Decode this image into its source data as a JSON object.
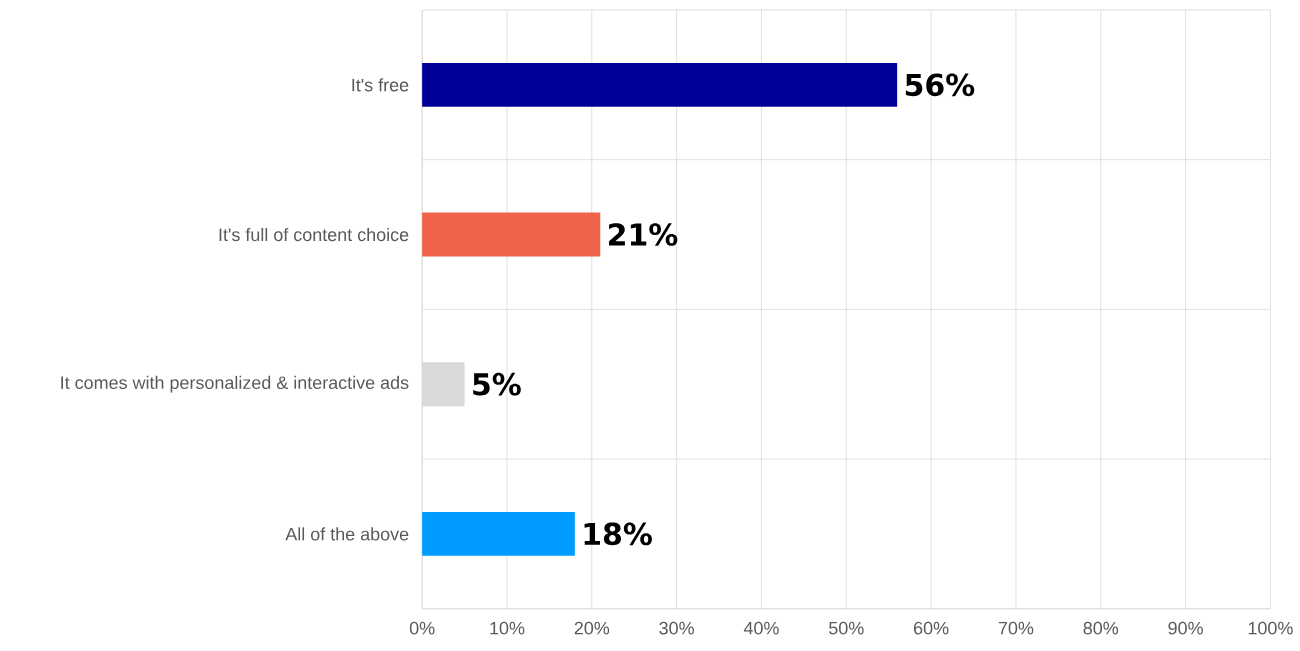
{
  "chart_data": {
    "type": "bar",
    "orientation": "horizontal",
    "categories": [
      "It's free",
      "It's full of content choice",
      "It comes with personalized & interactive ads",
      "All of the above"
    ],
    "values": [
      56,
      21,
      5,
      18
    ],
    "colors": [
      "#000099",
      "#f0634a",
      "#d9d9d9",
      "#009cff"
    ],
    "value_labels": [
      "56%",
      "21%",
      "5%",
      "18%"
    ],
    "xlim": [
      0,
      100
    ],
    "xticks": [
      {
        "value": 0,
        "label": "0%"
      },
      {
        "value": 10,
        "label": "10%"
      },
      {
        "value": 20,
        "label": "20%"
      },
      {
        "value": 30,
        "label": "30%"
      },
      {
        "value": 40,
        "label": "40%"
      },
      {
        "value": 50,
        "label": "50%"
      },
      {
        "value": 60,
        "label": "60%"
      },
      {
        "value": 70,
        "label": "70%"
      },
      {
        "value": 80,
        "label": "80%"
      },
      {
        "value": 90,
        "label": "90%"
      },
      {
        "value": 100,
        "label": "100%"
      }
    ],
    "grid": true
  }
}
